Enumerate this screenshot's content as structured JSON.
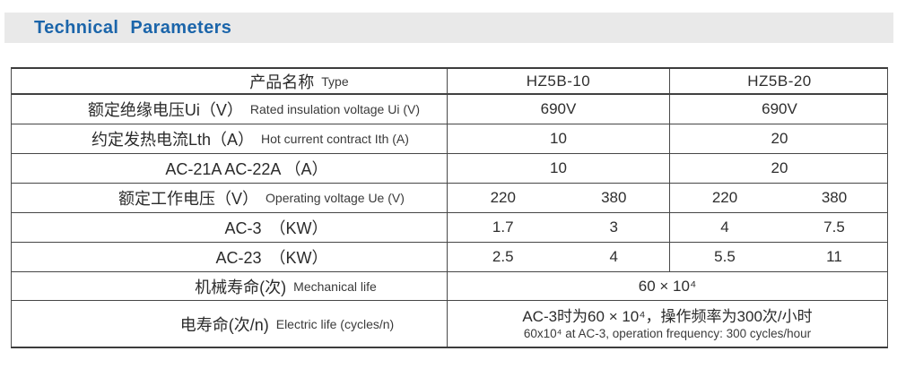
{
  "page": {
    "title": "Technical Parameters"
  },
  "table": {
    "header": {
      "zh": "产品名称",
      "en": "Type",
      "model1": "HZ5B-10",
      "model2": "HZ5B-20"
    },
    "rows": [
      {
        "zh": "额定绝缘电压Ui（V）",
        "en": "Rated insulation voltage Ui (V)",
        "v1": "690V",
        "v2": "690V"
      },
      {
        "zh": "约定发热电流Lth（A）",
        "en": "Hot current contract Ith (A)",
        "v1": "10",
        "v2": "20"
      },
      {
        "zh": "AC-21A AC-22A （A）",
        "en": "",
        "v1": "10",
        "v2": "20"
      },
      {
        "zh": "额定工作电压（V）",
        "en": "Operating voltage Ue (V)",
        "v1a": "220",
        "v1b": "380",
        "v2a": "220",
        "v2b": "380"
      },
      {
        "zh": "AC-3　（KW）",
        "en": "",
        "v1a": "1.7",
        "v1b": "3",
        "v2a": "4",
        "v2b": "7.5"
      },
      {
        "zh": "AC-23　（KW）",
        "en": "",
        "v1a": "2.5",
        "v1b": "4",
        "v2a": "5.5",
        "v2b": "11"
      },
      {
        "zh": "机械寿命(次)",
        "en": "Mechanical life",
        "span": "60 × 10⁴"
      },
      {
        "zh": "电寿命(次/n)",
        "en": "Electric life (cycles/n)",
        "span_zh": "AC-3时为60 × 10⁴，操作频率为300次/小时",
        "span_en": "60x10⁴ at AC-3, operation frequency: 300 cycles/hour"
      }
    ]
  }
}
